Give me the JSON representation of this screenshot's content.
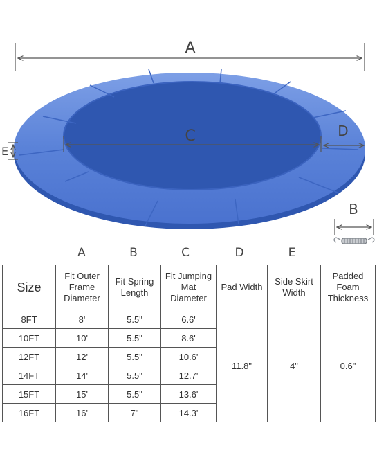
{
  "diagram": {
    "label_a": "A",
    "label_b": "B",
    "label_c": "C",
    "label_d": "D",
    "label_e": "E",
    "pad_color": "#4f79d4",
    "pad_top_color": "#6d92df",
    "pad_edge_color": "#2f57b0"
  },
  "table": {
    "column_letters": [
      "A",
      "B",
      "C",
      "D",
      "E"
    ],
    "headers": {
      "size": "Size",
      "outer_frame": [
        "Fit Outer",
        "Frame",
        "Diameter"
      ],
      "spring": [
        "Fit Spring",
        "Length"
      ],
      "mat": [
        "Fit Jumping",
        "Mat",
        "Diameter"
      ],
      "pad_width": [
        "Pad Width"
      ],
      "skirt": [
        "Side Skirt",
        "Width"
      ],
      "foam": [
        "Padded",
        "Foam",
        "Thickness"
      ]
    },
    "rows": [
      {
        "size": "8FT",
        "outer": "8'",
        "spring": "5.5\"",
        "mat": "6.6'"
      },
      {
        "size": "10FT",
        "outer": "10'",
        "spring": "5.5\"",
        "mat": "8.6'"
      },
      {
        "size": "12FT",
        "outer": "12'",
        "spring": "5.5\"",
        "mat": "10.6'"
      },
      {
        "size": "14FT",
        "outer": "14'",
        "spring": "5.5\"",
        "mat": "12.7'"
      },
      {
        "size": "15FT",
        "outer": "15'",
        "spring": "5.5\"",
        "mat": "13.6'"
      },
      {
        "size": "16FT",
        "outer": "16'",
        "spring": "7\"",
        "mat": "14.3'"
      }
    ],
    "pad_width": "11.8\"",
    "skirt_width": "4\"",
    "foam_thickness": "0.6\""
  }
}
